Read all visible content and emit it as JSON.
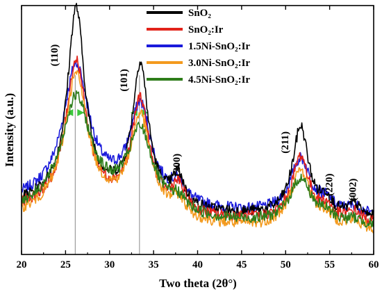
{
  "chart_data": {
    "type": "line",
    "xlabel": "Two theta (2θ°)",
    "ylabel": "Intensity (a.u.)",
    "xlim": [
      20,
      60
    ],
    "ylim": [
      0,
      1
    ],
    "x_ticks": [
      "20",
      "25",
      "30",
      "35",
      "40",
      "45",
      "50",
      "55",
      "60"
    ],
    "grid": false,
    "legend_position": "top-right",
    "reference_lines_x": [
      26.1,
      33.4
    ],
    "peak_labels": [
      {
        "text": "(110)",
        "x": 24.1,
        "y": 0.8
      },
      {
        "text": "(101)",
        "x": 32.0,
        "y": 0.7
      },
      {
        "text": "(200)",
        "x": 38.0,
        "y": 0.36
      },
      {
        "text": "(211)",
        "x": 50.3,
        "y": 0.45
      },
      {
        "text": "(220)",
        "x": 55.3,
        "y": 0.28
      },
      {
        "text": "(002)",
        "x": 58.0,
        "y": 0.26
      }
    ],
    "series": [
      {
        "name": "SnO₂",
        "color": "#000000",
        "base": 0.18,
        "peaks": [
          [
            26.2,
            0.76,
            1.2
          ],
          [
            33.5,
            0.55,
            1.1
          ],
          [
            37.8,
            0.12,
            0.8
          ],
          [
            51.7,
            0.36,
            1.1
          ],
          [
            54.6,
            0.06,
            0.8
          ],
          [
            57.8,
            0.05,
            0.8
          ]
        ]
      },
      {
        "name": "SnO₂:Ir",
        "color": "#e2231a",
        "base": 0.16,
        "peaks": [
          [
            26.2,
            0.57,
            1.4
          ],
          [
            33.5,
            0.43,
            1.2
          ],
          [
            37.8,
            0.1,
            0.9
          ],
          [
            51.7,
            0.26,
            1.2
          ],
          [
            54.6,
            0.05,
            0.9
          ],
          [
            57.8,
            0.04,
            0.9
          ]
        ]
      },
      {
        "name": "1.5Ni-SnO₂:Ir",
        "color": "#1a1adb",
        "base": 0.19,
        "peaks": [
          [
            26.2,
            0.52,
            1.8
          ],
          [
            33.5,
            0.37,
            1.5
          ],
          [
            37.8,
            0.07,
            1.0
          ],
          [
            51.7,
            0.22,
            1.4
          ],
          [
            54.6,
            0.04,
            1.0
          ],
          [
            57.8,
            0.03,
            1.0
          ]
        ]
      },
      {
        "name": "3.0Ni-SnO₂:Ir",
        "color": "#f39a1e",
        "base": 0.13,
        "peaks": [
          [
            26.2,
            0.54,
            1.6
          ],
          [
            33.5,
            0.39,
            1.4
          ],
          [
            37.8,
            0.07,
            1.0
          ],
          [
            51.7,
            0.23,
            1.4
          ],
          [
            54.6,
            0.04,
            1.0
          ],
          [
            57.8,
            0.03,
            1.0
          ]
        ]
      },
      {
        "name": "4.5Ni-SnO₂:Ir",
        "color": "#2e7d1a",
        "base": 0.15,
        "peaks": [
          [
            26.2,
            0.43,
            2.0
          ],
          [
            33.5,
            0.31,
            1.7
          ],
          [
            37.8,
            0.05,
            1.1
          ],
          [
            51.7,
            0.18,
            1.5
          ],
          [
            54.6,
            0.03,
            1.1
          ],
          [
            57.8,
            0.02,
            1.1
          ]
        ]
      }
    ]
  }
}
